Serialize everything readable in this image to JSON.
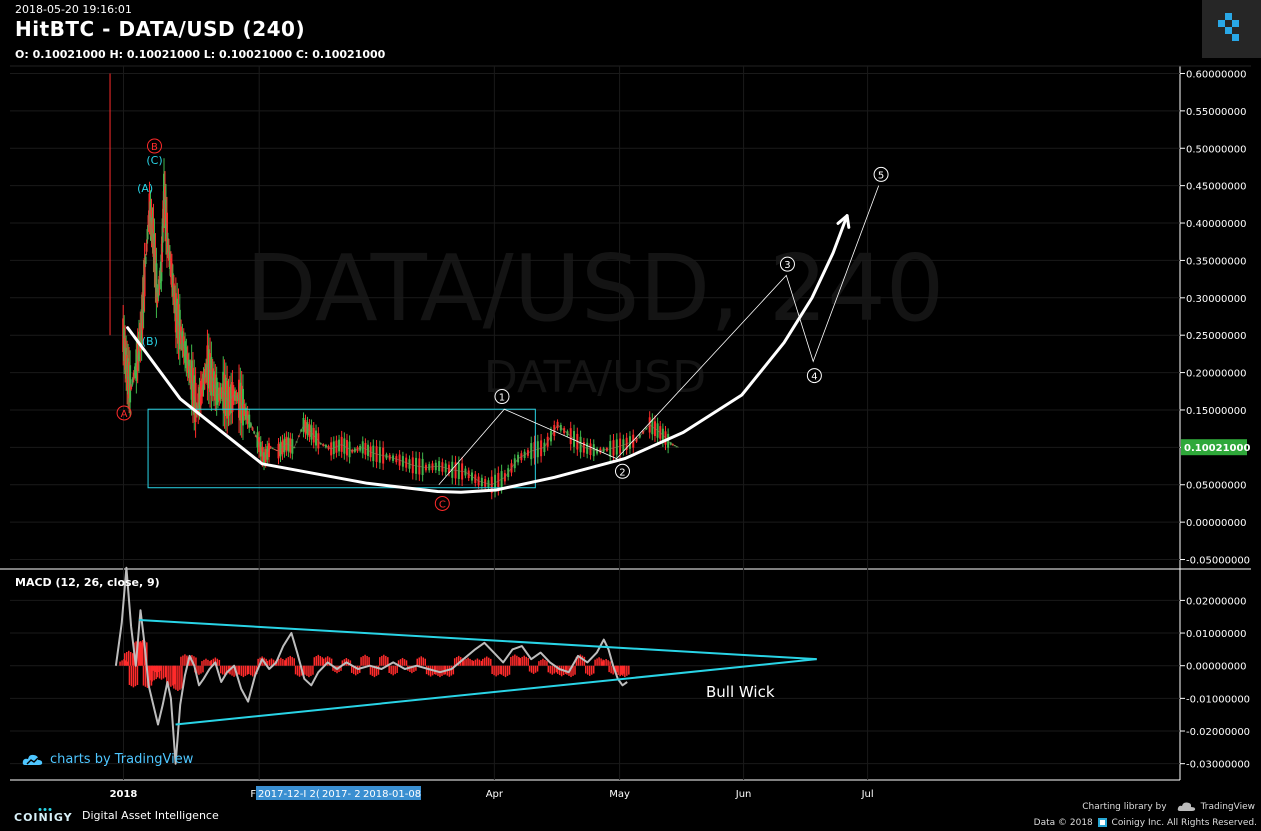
{
  "header": {
    "timestamp": "2018-05-20 19:16:01",
    "title": "HitBTC - DATA/USD (240)",
    "ohlc": "O: 0.10021000 H: 0.10021000 L: 0.10021000 C: 0.10021000"
  },
  "watermark": {
    "main": "DATA/USD, 240",
    "sub": "DATA/USD"
  },
  "macd_label": "MACD (12, 26, close, 9)",
  "chart_data": [
    {
      "type": "line",
      "pane": "price",
      "y_ticks": [
        "0.60000000",
        "0.55000000",
        "0.50000000",
        "0.45000000",
        "0.40000000",
        "0.35000000",
        "0.30000000",
        "0.25000000",
        "0.20000000",
        "0.15000000",
        "0.10000000",
        "0.05000000",
        "0.00000000",
        "-0.05000000"
      ],
      "ylim": [
        -0.06,
        0.61
      ],
      "x_ticks": [
        "2018",
        "Feb",
        "Apr",
        "May",
        "Jun",
        "Jul"
      ],
      "last_price": "0.10021000",
      "last_value": 0.10021,
      "price_path": [
        [
          0.01,
          0.25
        ],
        [
          0.013,
          0.2
        ],
        [
          0.016,
          0.18
        ],
        [
          0.02,
          0.21
        ],
        [
          0.024,
          0.26
        ],
        [
          0.027,
          0.35
        ],
        [
          0.03,
          0.42
        ],
        [
          0.033,
          0.38
        ],
        [
          0.036,
          0.3
        ],
        [
          0.039,
          0.34
        ],
        [
          0.041,
          0.44
        ],
        [
          0.044,
          0.37
        ],
        [
          0.047,
          0.33
        ],
        [
          0.05,
          0.28
        ],
        [
          0.054,
          0.25
        ],
        [
          0.058,
          0.22
        ],
        [
          0.062,
          0.19
        ],
        [
          0.066,
          0.15
        ],
        [
          0.07,
          0.18
        ],
        [
          0.074,
          0.21
        ],
        [
          0.078,
          0.19
        ],
        [
          0.082,
          0.17
        ],
        [
          0.086,
          0.175
        ],
        [
          0.09,
          0.16
        ],
        [
          0.094,
          0.17
        ],
        [
          0.098,
          0.165
        ],
        [
          0.102,
          0.15
        ],
        [
          0.107,
          0.13
        ],
        [
          0.112,
          0.11
        ],
        [
          0.117,
          0.085
        ],
        [
          0.122,
          0.1
        ],
        [
          0.128,
          0.095
        ],
        [
          0.134,
          0.105
        ],
        [
          0.14,
          0.1
        ],
        [
          0.147,
          0.13
        ],
        [
          0.153,
          0.12
        ],
        [
          0.16,
          0.105
        ],
        [
          0.168,
          0.098
        ],
        [
          0.176,
          0.104
        ],
        [
          0.184,
          0.095
        ],
        [
          0.192,
          0.1
        ],
        [
          0.2,
          0.092
        ],
        [
          0.21,
          0.088
        ],
        [
          0.22,
          0.083
        ],
        [
          0.23,
          0.076
        ],
        [
          0.24,
          0.073
        ],
        [
          0.25,
          0.075
        ],
        [
          0.26,
          0.07
        ],
        [
          0.27,
          0.067
        ],
        [
          0.28,
          0.055
        ],
        [
          0.29,
          0.05
        ],
        [
          0.3,
          0.06
        ],
        [
          0.31,
          0.085
        ],
        [
          0.32,
          0.095
        ],
        [
          0.33,
          0.1
        ],
        [
          0.34,
          0.13
        ],
        [
          0.35,
          0.115
        ],
        [
          0.36,
          0.1
        ],
        [
          0.37,
          0.095
        ],
        [
          0.38,
          0.098
        ],
        [
          0.39,
          0.103
        ],
        [
          0.4,
          0.11
        ],
        [
          0.41,
          0.13
        ],
        [
          0.418,
          0.12
        ],
        [
          0.426,
          0.105
        ],
        [
          0.432,
          0.1
        ]
      ],
      "annotations": [
        {
          "label": "A",
          "x": 0.012,
          "y": 0.146,
          "style": "red-circle"
        },
        {
          "label": "B",
          "x": 0.038,
          "y": 0.503,
          "style": "red-circle"
        },
        {
          "label": "C",
          "x": 0.284,
          "y": 0.025,
          "style": "red-circle"
        },
        {
          "label": "(A)",
          "x": 0.03,
          "y": 0.447,
          "style": "cyan"
        },
        {
          "label": "(B)",
          "x": 0.034,
          "y": 0.242,
          "style": "cyan"
        },
        {
          "label": "(C)",
          "x": 0.038,
          "y": 0.484,
          "style": "cyan"
        },
        {
          "label": "1",
          "x": 0.335,
          "y": 0.168,
          "style": "white-circle"
        },
        {
          "label": "2",
          "x": 0.438,
          "y": 0.068,
          "style": "white-circle"
        },
        {
          "label": "3",
          "x": 0.579,
          "y": 0.345,
          "style": "white-circle"
        },
        {
          "label": "4",
          "x": 0.602,
          "y": 0.196,
          "style": "white-circle"
        },
        {
          "label": "5",
          "x": 0.659,
          "y": 0.465,
          "style": "white-circle"
        }
      ],
      "box": {
        "x0": 0.118,
        "x1": 0.449,
        "y0": 0.046,
        "y1": 0.151
      },
      "elliott_path": [
        [
          0.281,
          0.05
        ],
        [
          0.337,
          0.151
        ],
        [
          0.433,
          0.085
        ],
        [
          0.578,
          0.33
        ],
        [
          0.601,
          0.215
        ],
        [
          0.657,
          0.45
        ]
      ],
      "cup_curve": [
        [
          0.015,
          0.26
        ],
        [
          0.06,
          0.165
        ],
        [
          0.13,
          0.078
        ],
        [
          0.22,
          0.052
        ],
        [
          0.28,
          0.041
        ],
        [
          0.3,
          0.04
        ],
        [
          0.33,
          0.043
        ],
        [
          0.38,
          0.06
        ],
        [
          0.44,
          0.085
        ],
        [
          0.49,
          0.12
        ],
        [
          0.54,
          0.17
        ],
        [
          0.576,
          0.24
        ],
        [
          0.6,
          0.3
        ],
        [
          0.618,
          0.36
        ],
        [
          0.63,
          0.41
        ]
      ]
    },
    {
      "type": "line",
      "pane": "macd",
      "y_ticks": [
        "0.02000000",
        "0.01000000",
        "0.00000000",
        "-0.01000000",
        "-0.02000000",
        "-0.03000000"
      ],
      "ylim": [
        -0.035,
        0.029
      ],
      "annotation": "Bull Wick",
      "triangle_upper": [
        [
          0.025,
          0.014
        ],
        [
          0.604,
          0.002
        ]
      ],
      "triangle_lower": [
        [
          0.056,
          -0.018
        ],
        [
          0.604,
          0.002
        ]
      ],
      "macd_path": [
        [
          0.005,
          0.0
        ],
        [
          0.01,
          0.013
        ],
        [
          0.014,
          0.03
        ],
        [
          0.018,
          0.012
        ],
        [
          0.022,
          0.0
        ],
        [
          0.026,
          0.017
        ],
        [
          0.029,
          0.008
        ],
        [
          0.033,
          -0.006
        ],
        [
          0.037,
          -0.012
        ],
        [
          0.041,
          -0.018
        ],
        [
          0.045,
          -0.012
        ],
        [
          0.049,
          -0.005
        ],
        [
          0.052,
          -0.01
        ],
        [
          0.056,
          -0.03
        ],
        [
          0.06,
          -0.012
        ],
        [
          0.064,
          -0.003
        ],
        [
          0.068,
          0.003
        ],
        [
          0.072,
          0.0
        ],
        [
          0.076,
          -0.006
        ],
        [
          0.08,
          -0.004
        ],
        [
          0.085,
          -0.001
        ],
        [
          0.09,
          0.001
        ],
        [
          0.095,
          -0.005
        ],
        [
          0.1,
          -0.002
        ],
        [
          0.106,
          0.0
        ],
        [
          0.112,
          -0.007
        ],
        [
          0.118,
          -0.011
        ],
        [
          0.124,
          -0.003
        ],
        [
          0.13,
          0.002
        ],
        [
          0.136,
          -0.001
        ],
        [
          0.142,
          0.001
        ],
        [
          0.148,
          0.006
        ],
        [
          0.155,
          0.01
        ],
        [
          0.16,
          0.004
        ],
        [
          0.166,
          -0.004
        ],
        [
          0.172,
          -0.006
        ],
        [
          0.178,
          -0.002
        ],
        [
          0.186,
          0.001
        ],
        [
          0.194,
          -0.001
        ],
        [
          0.202,
          0.001
        ],
        [
          0.212,
          -0.001
        ],
        [
          0.222,
          0.0
        ],
        [
          0.232,
          -0.001
        ],
        [
          0.242,
          0.001
        ],
        [
          0.252,
          -0.001
        ],
        [
          0.262,
          0.0
        ],
        [
          0.272,
          -0.001
        ],
        [
          0.282,
          -0.002
        ],
        [
          0.292,
          -0.001
        ],
        [
          0.302,
          0.002
        ],
        [
          0.312,
          0.005
        ],
        [
          0.32,
          0.007
        ],
        [
          0.328,
          0.004
        ],
        [
          0.336,
          0.001
        ],
        [
          0.344,
          0.005
        ],
        [
          0.352,
          0.006
        ],
        [
          0.36,
          0.002
        ],
        [
          0.368,
          0.004
        ],
        [
          0.376,
          0.001
        ],
        [
          0.384,
          -0.001
        ],
        [
          0.392,
          -0.002
        ],
        [
          0.4,
          0.003
        ],
        [
          0.408,
          0.001
        ],
        [
          0.416,
          0.004
        ],
        [
          0.422,
          0.008
        ],
        [
          0.426,
          0.005
        ],
        [
          0.43,
          0.0
        ],
        [
          0.434,
          -0.004
        ],
        [
          0.438,
          -0.006
        ],
        [
          0.442,
          -0.005
        ]
      ],
      "hist_sign": [
        [
          0.012,
          1
        ],
        [
          0.016,
          1
        ],
        [
          0.02,
          -1
        ],
        [
          0.024,
          1
        ],
        [
          0.028,
          1
        ],
        [
          0.032,
          -1
        ],
        [
          0.036,
          -1
        ],
        [
          0.04,
          -1
        ],
        [
          0.044,
          -1
        ],
        [
          0.052,
          -1
        ],
        [
          0.058,
          -1
        ],
        [
          0.064,
          1
        ],
        [
          0.07,
          1
        ],
        [
          0.076,
          -1
        ],
        [
          0.082,
          1
        ],
        [
          0.09,
          1
        ],
        [
          0.098,
          -1
        ],
        [
          0.106,
          -1
        ],
        [
          0.114,
          -1
        ],
        [
          0.122,
          -1
        ],
        [
          0.13,
          1
        ],
        [
          0.138,
          1
        ],
        [
          0.146,
          1
        ],
        [
          0.154,
          1
        ],
        [
          0.162,
          -1
        ],
        [
          0.17,
          -1
        ],
        [
          0.178,
          1
        ],
        [
          0.186,
          1
        ],
        [
          0.194,
          -1
        ],
        [
          0.202,
          1
        ],
        [
          0.21,
          -1
        ],
        [
          0.218,
          1
        ],
        [
          0.226,
          -1
        ],
        [
          0.234,
          1
        ],
        [
          0.242,
          -1
        ],
        [
          0.25,
          1
        ],
        [
          0.258,
          -1
        ],
        [
          0.266,
          1
        ],
        [
          0.274,
          -1
        ],
        [
          0.282,
          -1
        ],
        [
          0.29,
          -1
        ],
        [
          0.298,
          1
        ],
        [
          0.306,
          1
        ],
        [
          0.314,
          1
        ],
        [
          0.322,
          1
        ],
        [
          0.33,
          -1
        ],
        [
          0.338,
          -1
        ],
        [
          0.346,
          1
        ],
        [
          0.354,
          1
        ],
        [
          0.362,
          -1
        ],
        [
          0.37,
          1
        ],
        [
          0.378,
          -1
        ],
        [
          0.386,
          -1
        ],
        [
          0.394,
          -1
        ],
        [
          0.402,
          1
        ],
        [
          0.41,
          -1
        ],
        [
          0.418,
          1
        ],
        [
          0.424,
          1
        ],
        [
          0.43,
          -1
        ],
        [
          0.436,
          -1
        ],
        [
          0.44,
          -1
        ]
      ]
    }
  ],
  "x_overlay_labels": [
    "2017-12-I 2(",
    "2017- 2",
    "2018-01-08"
  ],
  "branding": {
    "tradingview": "charts by TradingView",
    "footer_brand": "COINIGY",
    "footer_tag": "Digital Asset Intelligence",
    "charting_library": "Charting library by",
    "tv_short": "TradingView",
    "copyright": "Data © 2018 · Coinigy Inc. All Rights Reserved.",
    "copyright_pre": "Data © 2018",
    "copyright_post": "Coinigy Inc. All Rights Reserved."
  },
  "colors": {
    "background": "#000000",
    "grid": "#1a1a1a",
    "cyan": "#29d4e6",
    "red": "#ff2b2b",
    "green": "#3fb84c",
    "price_badge": "#2fa83a",
    "cup": "#ffffff",
    "macd_line": "#bdbdbd"
  }
}
